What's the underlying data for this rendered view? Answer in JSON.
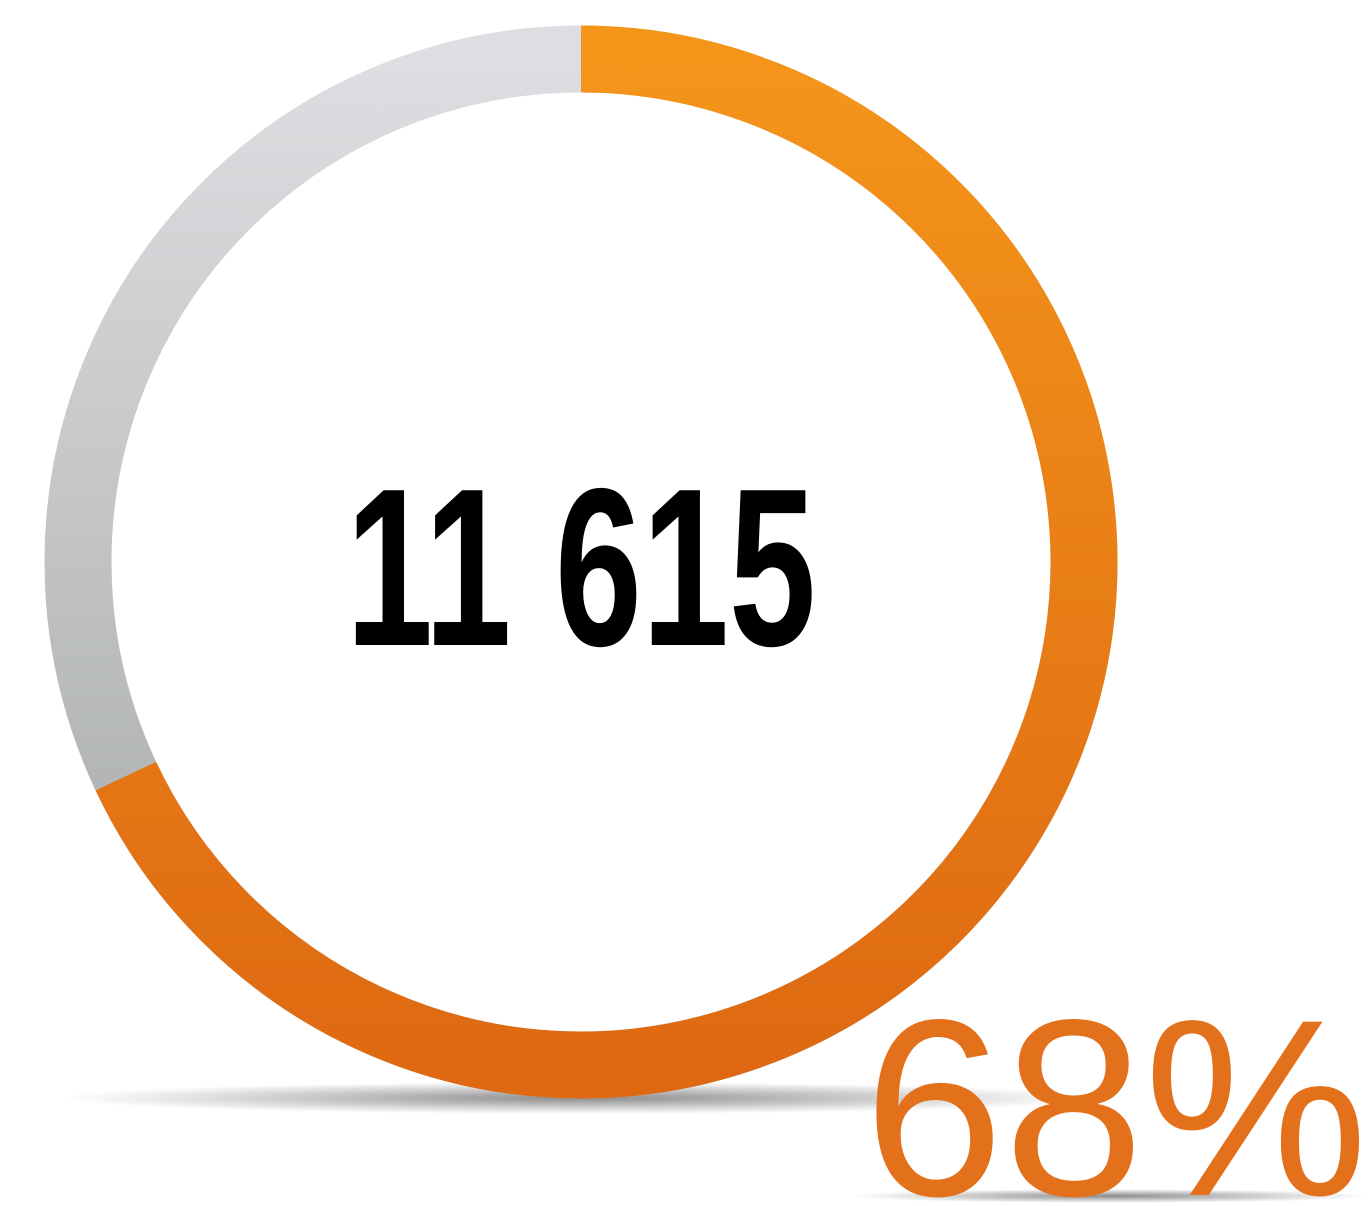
{
  "chart_data": {
    "type": "gauge",
    "value": 68,
    "value_label": "68%",
    "center_text": "11 615",
    "color": "#e8791a",
    "track_color": "#c4c6c7"
  }
}
